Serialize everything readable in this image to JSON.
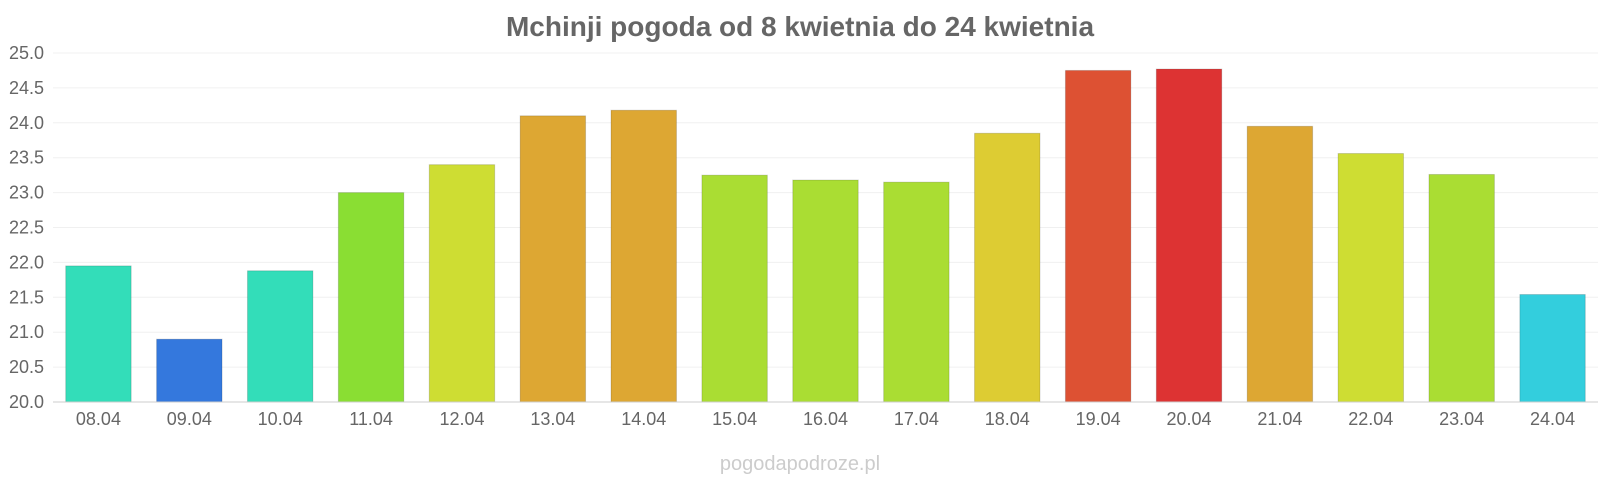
{
  "chart_data": {
    "type": "bar",
    "title": "Mchinji pogoda od 8 kwietnia do 24 kwietnia",
    "xlabel": "",
    "ylabel": "",
    "categories": [
      "08.04",
      "09.04",
      "10.04",
      "11.04",
      "12.04",
      "13.04",
      "14.04",
      "15.04",
      "16.04",
      "17.04",
      "18.04",
      "19.04",
      "20.04",
      "21.04",
      "22.04",
      "23.04",
      "24.04"
    ],
    "values": [
      21.95,
      20.9,
      21.88,
      23.0,
      23.4,
      24.1,
      24.18,
      23.25,
      23.18,
      23.15,
      23.85,
      24.75,
      24.77,
      23.95,
      23.56,
      23.26,
      21.54
    ],
    "colors": [
      "#33ddb9",
      "#3478dd",
      "#33ddb9",
      "#8ade33",
      "#cedd33",
      "#dda733",
      "#dda733",
      "#aadd33",
      "#aadd33",
      "#aadd33",
      "#ddcc33",
      "#dd5133",
      "#dd3333",
      "#dda733",
      "#cedd33",
      "#aadd33",
      "#33cedd"
    ],
    "ylim": [
      20.0,
      25.0
    ],
    "yticks": [
      "20.0",
      "20.5",
      "21.0",
      "21.5",
      "22.0",
      "22.5",
      "23.0",
      "23.5",
      "24.0",
      "24.5",
      "25.0"
    ],
    "grid": true,
    "legend": "none"
  },
  "footer": "pogodapodroze.pl"
}
